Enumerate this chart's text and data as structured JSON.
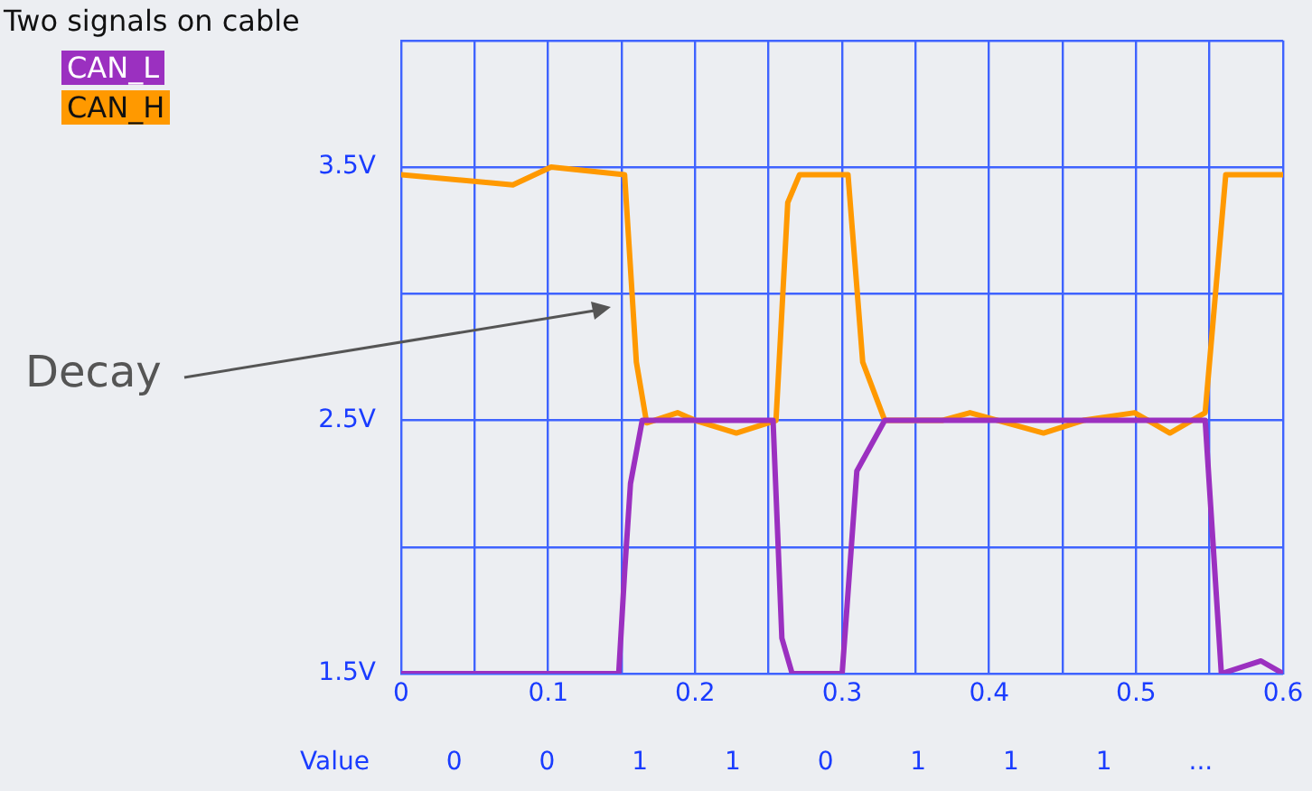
{
  "chart_data": {
    "type": "line",
    "title": "Two signals on cable",
    "legend": "top left",
    "grid": true,
    "marker": "none",
    "line_style": "solid",
    "xlim": [
      0,
      0.6
    ],
    "ylim": [
      1.5,
      4
    ],
    "xticks": [
      0,
      {
        "value": 0.05,
        "label": null
      },
      0.1,
      {
        "value": 0.15,
        "label": null
      },
      0.2,
      {
        "value": 0.25,
        "label": null
      },
      0.3,
      {
        "value": 0.35,
        "label": null
      },
      0.4,
      {
        "value": 0.45,
        "label": null
      },
      0.5,
      {
        "value": 0.55,
        "label": null
      },
      0.6
    ],
    "yticks": [
      {
        "value": 1.5,
        "label": "1.5V"
      },
      {
        "value": 2,
        "label": null
      },
      {
        "value": 2.5,
        "label": "2.5V"
      },
      {
        "value": 3,
        "label": null
      },
      {
        "value": 3.5,
        "label": "3.5V"
      },
      {
        "value": 4,
        "label": null
      }
    ],
    "series": [
      {
        "name": "CAN_L",
        "color": "#9b30c0",
        "x": [
          0,
          0.148,
          0.152,
          0.156,
          0.164,
          0.253,
          0.259,
          0.266,
          0.3,
          0.31,
          0.329,
          0.547,
          0.558,
          0.585,
          0.6
        ],
        "values": [
          1.5,
          1.5,
          1.9,
          2.25,
          2.5,
          2.5,
          1.64,
          1.5,
          1.5,
          2.3,
          2.5,
          2.5,
          1.5,
          1.55,
          1.5
        ]
      },
      {
        "name": "CAN_H",
        "color": "#ff9900",
        "x": [
          0,
          0.076,
          0.102,
          0.152,
          0.16,
          0.167,
          0.188,
          0.2,
          0.228,
          0.255,
          0.263,
          0.271,
          0.304,
          0.314,
          0.329,
          0.368,
          0.387,
          0.437,
          0.464,
          0.499,
          0.523,
          0.547,
          0.561,
          0.6
        ],
        "values": [
          3.47,
          3.43,
          3.5,
          3.47,
          2.73,
          2.49,
          2.53,
          2.5,
          2.45,
          2.5,
          3.36,
          3.47,
          3.47,
          2.73,
          2.5,
          2.5,
          2.53,
          2.45,
          2.5,
          2.53,
          2.45,
          2.53,
          3.47,
          3.47
        ]
      }
    ],
    "annotations": [
      "Decay",
      "Value 0 0 1 1 0 1 1 1 ..."
    ]
  }
}
